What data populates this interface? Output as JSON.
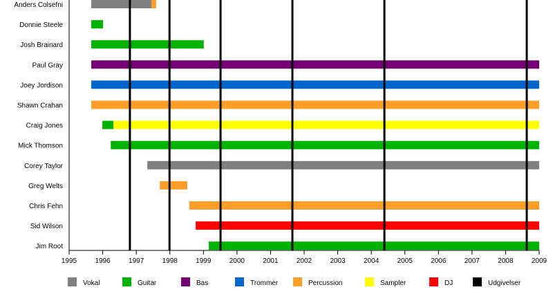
{
  "chart_data": {
    "type": "timeline",
    "title": "",
    "xlim": [
      1995,
      2009
    ],
    "x_ticks": [
      1995,
      1996,
      1997,
      1998,
      1999,
      2000,
      2001,
      2002,
      2003,
      2004,
      2005,
      2006,
      2007,
      2008,
      2009
    ],
    "roles": [
      {
        "key": "vokal",
        "label": "Vokal",
        "color": "#808080"
      },
      {
        "key": "guitar",
        "label": "Guitar",
        "color": "#00b300"
      },
      {
        "key": "bas",
        "label": "Bas",
        "color": "#730073"
      },
      {
        "key": "trommer",
        "label": "Trommer",
        "color": "#0066cc"
      },
      {
        "key": "percussion",
        "label": "Percussion",
        "color": "#ff9f2a"
      },
      {
        "key": "sampler",
        "label": "Sampler",
        "color": "#ffff00"
      },
      {
        "key": "dj",
        "label": "DJ",
        "color": "#ff0000"
      },
      {
        "key": "udgivelser",
        "label": "Udgivelser",
        "color": "#000000"
      }
    ],
    "members": [
      {
        "name": "Anders Colsefni",
        "periods": [
          {
            "role": "vokal",
            "start": 1995.66,
            "end": 1997.45
          },
          {
            "role": "percussion",
            "start": 1997.45,
            "end": 1997.59
          }
        ]
      },
      {
        "name": "Donnie Steele",
        "periods": [
          {
            "role": "guitar",
            "start": 1995.66,
            "end": 1996.01
          }
        ]
      },
      {
        "name": "Josh Brainard",
        "periods": [
          {
            "role": "guitar",
            "start": 1995.66,
            "end": 1999.01
          }
        ]
      },
      {
        "name": "Paul Gray",
        "periods": [
          {
            "role": "bas",
            "start": 1995.66,
            "end": 2009
          }
        ]
      },
      {
        "name": "Joey Jordison",
        "periods": [
          {
            "role": "trommer",
            "start": 1995.66,
            "end": 2009
          }
        ]
      },
      {
        "name": "Shawn Crahan",
        "periods": [
          {
            "role": "percussion",
            "start": 1995.66,
            "end": 2009
          }
        ]
      },
      {
        "name": "Craig Jones",
        "periods": [
          {
            "role": "guitar",
            "start": 1995.99,
            "end": 1996.32
          },
          {
            "role": "sampler",
            "start": 1996.32,
            "end": 2009
          }
        ]
      },
      {
        "name": "Mick Thomson",
        "periods": [
          {
            "role": "guitar",
            "start": 1996.24,
            "end": 2009
          }
        ]
      },
      {
        "name": "Corey Taylor",
        "periods": [
          {
            "role": "vokal",
            "start": 1997.33,
            "end": 2009
          }
        ]
      },
      {
        "name": "Greg Welts",
        "periods": [
          {
            "role": "percussion",
            "start": 1997.7,
            "end": 1998.52
          }
        ]
      },
      {
        "name": "Chris Fehn",
        "periods": [
          {
            "role": "percussion",
            "start": 1998.58,
            "end": 2009
          }
        ]
      },
      {
        "name": "Sid Wilson",
        "periods": [
          {
            "role": "dj",
            "start": 1998.77,
            "end": 2009
          }
        ]
      },
      {
        "name": "Jim Root",
        "periods": [
          {
            "role": "guitar",
            "start": 1999.16,
            "end": 2009
          }
        ]
      }
    ],
    "releases": [
      1996.81,
      1997.99,
      1999.51,
      2001.65,
      2004.39,
      2008.63
    ]
  }
}
